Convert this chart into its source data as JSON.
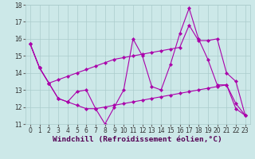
{
  "xlabel": "Windchill (Refroidissement éolien,°C)",
  "bg_color": "#cce8e8",
  "line_color": "#aa00aa",
  "grid_color": "#aacccc",
  "xlim": [
    -0.5,
    23.5
  ],
  "ylim": [
    11,
    18
  ],
  "xticks": [
    0,
    1,
    2,
    3,
    4,
    5,
    6,
    7,
    8,
    9,
    10,
    11,
    12,
    13,
    14,
    15,
    16,
    17,
    18,
    19,
    20,
    21,
    22,
    23
  ],
  "yticks": [
    11,
    12,
    13,
    14,
    15,
    16,
    17,
    18
  ],
  "tick_fontsize": 5.5,
  "xlabel_fontsize": 6.8,
  "series": [
    [
      15.7,
      14.3,
      13.4,
      12.5,
      12.3,
      12.9,
      13.0,
      11.9,
      11.0,
      12.0,
      13.0,
      16.0,
      15.0,
      13.2,
      13.0,
      14.5,
      16.3,
      17.8,
      16.0,
      14.8,
      13.3,
      13.3,
      12.2,
      11.5
    ],
    [
      15.7,
      14.3,
      13.4,
      13.6,
      13.8,
      14.0,
      14.2,
      14.4,
      14.6,
      14.8,
      14.9,
      15.0,
      15.1,
      15.2,
      15.3,
      15.4,
      15.5,
      16.8,
      15.9,
      15.9,
      16.0,
      14.0,
      13.5,
      11.5
    ],
    [
      15.7,
      14.3,
      13.4,
      12.5,
      12.3,
      12.1,
      11.9,
      11.9,
      12.0,
      12.1,
      12.2,
      12.3,
      12.4,
      12.5,
      12.6,
      12.7,
      12.8,
      12.9,
      13.0,
      13.1,
      13.2,
      13.3,
      11.9,
      11.5
    ]
  ]
}
